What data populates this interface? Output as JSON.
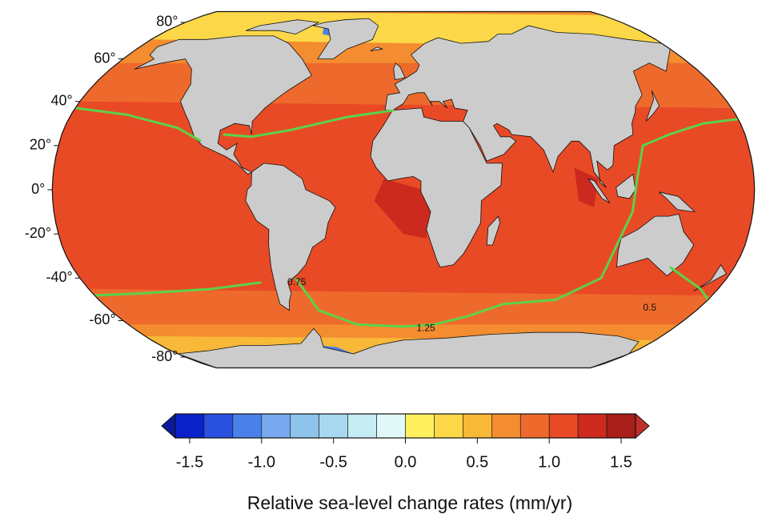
{
  "map": {
    "lat_labels": [
      {
        "value": 80,
        "label": "80°"
      },
      {
        "value": 60,
        "label": "60°"
      },
      {
        "value": 40,
        "label": "40°"
      },
      {
        "value": 20,
        "label": "20°"
      },
      {
        "value": 0,
        "label": "0°"
      },
      {
        "value": -20,
        "label": "-20°"
      },
      {
        "value": -40,
        "label": "-40°"
      },
      {
        "value": -60,
        "label": "-60°"
      },
      {
        "value": -80,
        "label": "-80°"
      }
    ],
    "contour_labels": [
      "0.75",
      "1.25",
      "0.5"
    ]
  },
  "colorbar": {
    "bins": [
      -1.6,
      -1.4,
      -1.2,
      -1.0,
      -0.8,
      -0.6,
      -0.4,
      -0.2,
      0.0,
      0.2,
      0.4,
      0.6,
      0.8,
      1.0,
      1.2,
      1.4,
      1.6
    ],
    "colors": [
      "#0a20c8",
      "#2a50e0",
      "#4a80ea",
      "#78a8ee",
      "#8ec4ec",
      "#a8d8f0",
      "#c6ecf4",
      "#e2f8f8",
      "#fff060",
      "#fcd848",
      "#f8b838",
      "#f48c30",
      "#ee6a2c",
      "#e84a26",
      "#cc2a1e",
      "#a81e18"
    ],
    "under_color": "#0a1c9a",
    "over_color": "#c0302a",
    "xlim": [
      -1.6,
      1.6
    ],
    "ticks": [
      -1.5,
      {
        "value": -1,
        "label": "-1.0"
      },
      -0.5,
      {
        "value": 0,
        "label": "0.0"
      },
      0.5,
      {
        "value": 1,
        "label": "1.0"
      },
      1.5
    ],
    "label": "Relative sea-level change rates (mm/yr)"
  }
}
